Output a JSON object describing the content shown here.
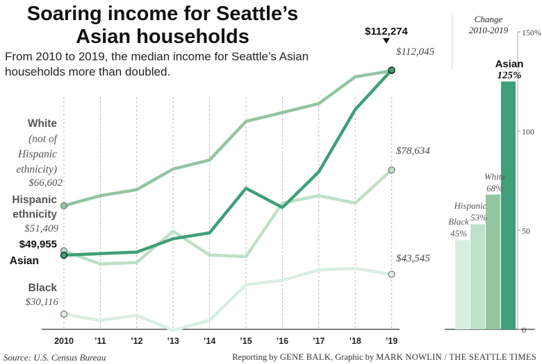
{
  "chart_data": [
    {
      "type": "line",
      "title": "Soaring income for Seattle’s Asian households",
      "subtitle": "From 2010 to 2019, the median income for Seattle’s Asian households more than doubled.",
      "x": [
        "2010",
        "’11",
        "’12",
        "’13",
        "’14",
        "’15",
        "’16",
        "’17",
        "’18",
        "’19"
      ],
      "ylim": [
        25000,
        120000
      ],
      "grid": "vertical dashed",
      "series": [
        {
          "name": "White (not of Hispanic ethnicity)",
          "color": "#93c4a1",
          "values": [
            66602,
            70000,
            72000,
            79000,
            82000,
            95000,
            98000,
            101000,
            110000,
            112045
          ],
          "start_label": "$66,602",
          "end_label": "$112,045"
        },
        {
          "name": "Hispanic ethnicity",
          "color": "#bedfc8",
          "values": [
            51409,
            47000,
            47500,
            58000,
            50000,
            49500,
            67500,
            70000,
            67500,
            78634
          ],
          "start_label": "$51,409",
          "end_label": "$78,634"
        },
        {
          "name": "Asian",
          "color": "#3e9f78",
          "values": [
            49955,
            50500,
            51000,
            55500,
            57500,
            72500,
            66000,
            78000,
            99000,
            112274
          ],
          "start_label": "$49,955",
          "end_label": "$112,274"
        },
        {
          "name": "Black",
          "color": "#daeee2",
          "values": [
            30116,
            28000,
            29700,
            24700,
            28000,
            40000,
            41500,
            45000,
            45500,
            43545
          ],
          "start_label": "$30,116",
          "end_label": "$43,545"
        }
      ]
    },
    {
      "type": "bar",
      "title": "Change 2010-2019",
      "categories": [
        "Black",
        "Hispanic",
        "White",
        "Asian"
      ],
      "values": [
        45,
        53,
        68,
        125
      ],
      "value_labels": [
        "45%",
        "53%",
        "68%",
        "125%"
      ],
      "colors": [
        "#d9eee3",
        "#bfe0cb",
        "#94c5a3",
        "#3e9f78"
      ],
      "ylim": [
        0,
        150
      ],
      "yticks": [
        "0",
        "50",
        "100",
        "150%"
      ]
    }
  ],
  "footer": {
    "source": "Source: U.S. Census Bureau",
    "credit_reporting": "Reporting by",
    "credit_reporter": "GENE BALK",
    "credit_graphic": ", Graphic by",
    "credit_artist": "MARK NOWLIN / THE SEATTLE TIMES"
  }
}
